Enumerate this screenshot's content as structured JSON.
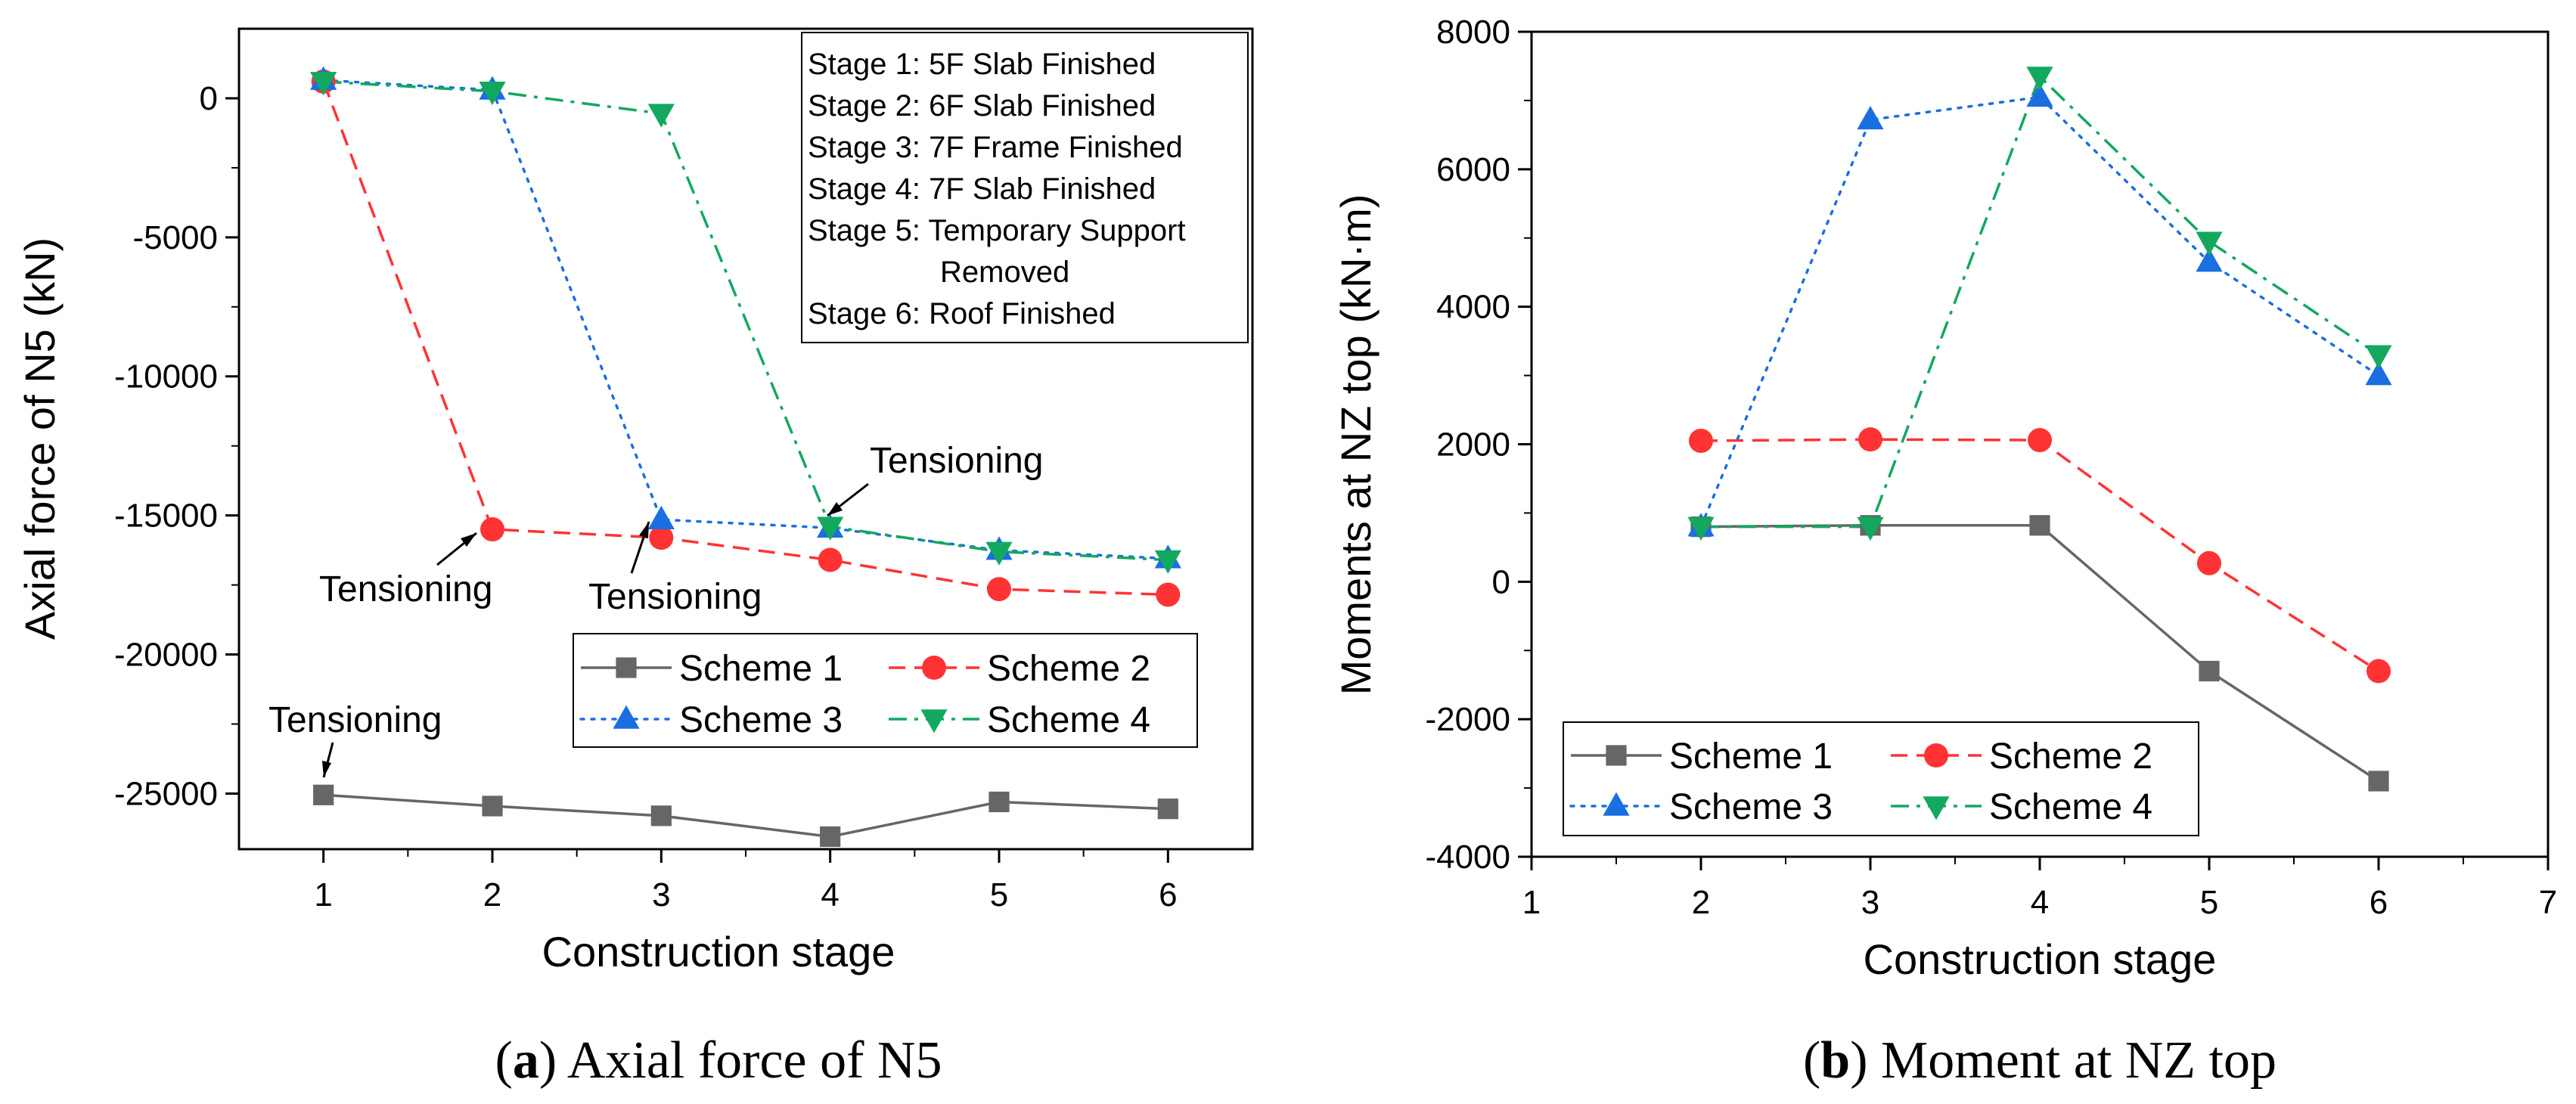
{
  "colors": {
    "scheme1": "#666666",
    "scheme2": "#ff3333",
    "scheme3": "#1a6fe0",
    "scheme4": "#13a860"
  },
  "chart_data": [
    {
      "type": "line",
      "xlabel": "Construction stage",
      "ylabel": "Axial force of N5 (kN)",
      "xlim": [
        0.5,
        6.5
      ],
      "ylim": [
        -27000,
        2500
      ],
      "xticks": [
        1,
        2,
        3,
        4,
        5,
        6
      ],
      "yticks": [
        0,
        -5000,
        -10000,
        -15000,
        -20000,
        -25000
      ],
      "x": [
        1,
        2,
        3,
        4,
        5,
        6
      ],
      "series": [
        {
          "name": "Scheme 1",
          "values": [
            -25050,
            -25450,
            -25800,
            -26550,
            -25300,
            -25550
          ],
          "marker": "square",
          "dash": "solid"
        },
        {
          "name": "Scheme 2",
          "values": [
            600,
            -15500,
            -15800,
            -16600,
            -17650,
            -17850
          ],
          "marker": "circle",
          "dash": "dash"
        },
        {
          "name": "Scheme 3",
          "values": [
            650,
            300,
            -15150,
            -15450,
            -16250,
            -16550
          ],
          "marker": "triangle-up",
          "dash": "dot"
        },
        {
          "name": "Scheme 4",
          "values": [
            600,
            250,
            -550,
            -15400,
            -16300,
            -16600
          ],
          "marker": "triangle-down",
          "dash": "dashdot"
        }
      ],
      "stage_notes": [
        "Stage 1: 5F Slab Finished",
        "Stage 2: 6F Slab Finished",
        "Stage 3: 7F Frame Finished",
        "Stage 4: 7F Slab Finished",
        "Stage 5: Temporary Support",
        "Removed",
        "Stage 6: Roof Finished"
      ],
      "annotations": [
        {
          "text": "Tensioning",
          "x": 4,
          "y": -15400
        },
        {
          "text": "Tensioning",
          "x": 2,
          "y": -15500
        },
        {
          "text": "Tensioning",
          "x": 3,
          "y": -15150
        },
        {
          "text": "Tensioning",
          "x": 1,
          "y": -25050
        }
      ],
      "legend": "lower-right",
      "caption_letter": "a",
      "caption_text": "Axial force of N5"
    },
    {
      "type": "line",
      "xlabel": "Construction stage",
      "ylabel": "Moments at NZ top (kN·m)",
      "xlim": [
        1,
        7
      ],
      "ylim": [
        -4000,
        8000
      ],
      "xticks": [
        1,
        2,
        3,
        4,
        5,
        6,
        7
      ],
      "yticks": [
        8000,
        6000,
        4000,
        2000,
        0,
        -2000,
        -4000
      ],
      "x": [
        2,
        3,
        4,
        5,
        6
      ],
      "series": [
        {
          "name": "Scheme 1",
          "values": [
            800,
            820,
            820,
            -1300,
            -2900
          ],
          "marker": "square",
          "dash": "solid"
        },
        {
          "name": "Scheme 2",
          "values": [
            2050,
            2070,
            2060,
            270,
            -1300
          ],
          "marker": "circle",
          "dash": "dash"
        },
        {
          "name": "Scheme 3",
          "values": [
            800,
            6720,
            7050,
            4650,
            3000
          ],
          "marker": "triangle-up",
          "dash": "dot"
        },
        {
          "name": "Scheme 4",
          "values": [
            800,
            800,
            7350,
            4950,
            3300
          ],
          "marker": "triangle-down",
          "dash": "dashdot"
        }
      ],
      "legend": "lower-left",
      "caption_letter": "b",
      "caption_text": "Moment at NZ top"
    }
  ]
}
